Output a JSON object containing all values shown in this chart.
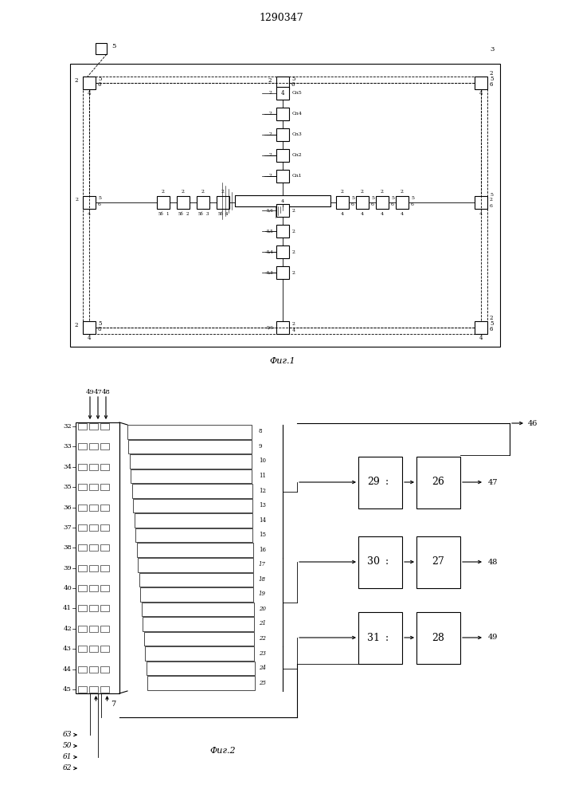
{
  "title": "1290347",
  "fig1_label": "Фиг.1",
  "fig2_label": "Фиг.2",
  "bg_color": "#ffffff",
  "line_color": "#000000",
  "fig2_left_inputs": [
    "32",
    "33",
    "34",
    "35",
    "36",
    "37",
    "38",
    "39",
    "40",
    "41",
    "42",
    "43",
    "44",
    "45"
  ],
  "fig2_bus_labels": [
    "49",
    "47",
    "48"
  ],
  "fig2_channel_labels": [
    "8",
    "9",
    "10",
    "11",
    "12",
    "13",
    "14",
    "15",
    "16",
    "17",
    "18",
    "19",
    "20",
    "21",
    "22",
    "23",
    "24",
    "25"
  ],
  "fig2_right_blocks": [
    {
      "b1": "29",
      "b2": "26",
      "arrow_out": "47"
    },
    {
      "b1": "30",
      "b2": "27",
      "arrow_out": "48"
    },
    {
      "b1": "31",
      "b2": "28",
      "arrow_out": "49"
    }
  ],
  "fig2_bottom_inputs": [
    "63",
    "50",
    "61",
    "62"
  ],
  "fig2_top_out": "46"
}
